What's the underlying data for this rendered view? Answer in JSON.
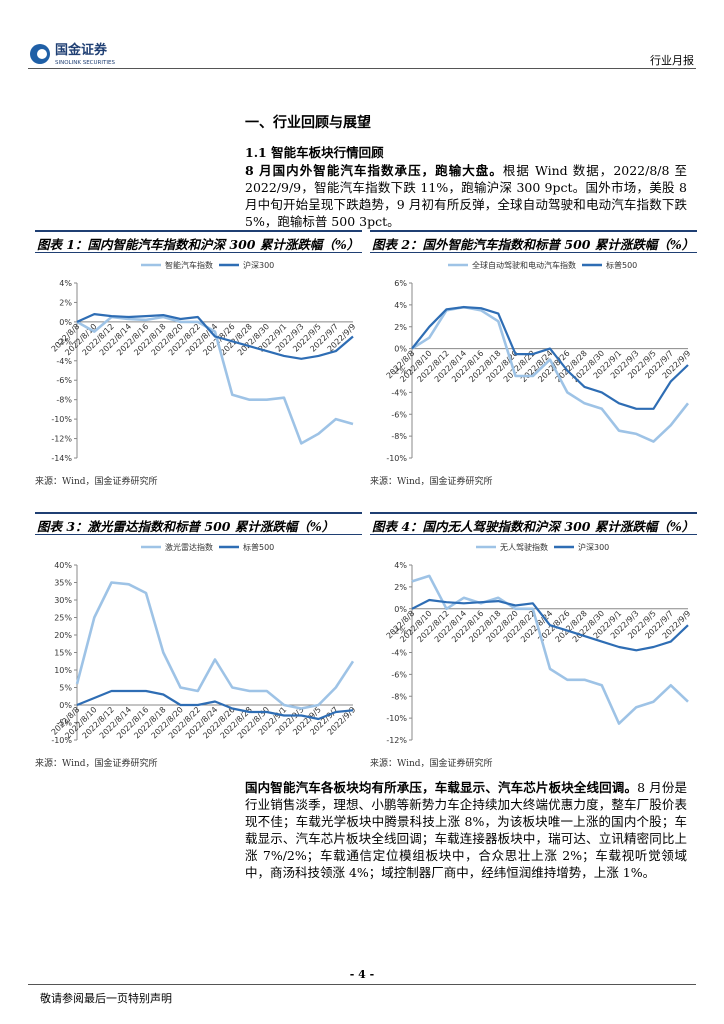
{
  "header": {
    "logo_cn": "国金证券",
    "logo_en": "SINOLINK SECURITIES",
    "report_type": "行业月报"
  },
  "section": "一、行业回顾与展望",
  "subsection": "1.1 智能车板块行情回顾",
  "paragraphs": [
    {
      "lead": "8 月国内外智能汽车指数承压，跑输大盘。",
      "text": "根据 Wind 数据，2022/8/8 至 2022/9/9，智能汽车指数下跌 11%，跑输沪深 300 9pct。国外市场，美股 8 月中旬开始呈现下跌趋势，9 月初有所反弹，全球自动驾驶和电动汽车指数下跌 5%，跑输标普 500 3pct。"
    },
    {
      "lead": "国内智能汽车各板块均有所承压，车载显示、汽车芯片板块全线回调。",
      "text": "8 月份是行业销售淡季，理想、小鹏等新势力车企持续加大终端优惠力度，整车厂股价表现不佳；车载光学板块中腾景科技上涨 8%，为该板块唯一上涨的国内个股；车载显示、汽车芯片板块全线回调；车载连接器板块中，瑞可达、立讯精密同比上涨 7%/2%；车载通信定位模组板块中，合众思壮上涨 2%；车载视听觉领域中，商汤科技领涨 4%；域控制器厂商中，经纬恒润维持增势，上涨 1%。"
    }
  ],
  "chart_data": [
    {
      "type": "line",
      "title": "图表 1：国内智能汽车指数和沪深 300 累计涨跌幅（%）",
      "source": "来源：Wind，国金证券研究所",
      "categories": [
        "2022/8/8",
        "2022/8/10",
        "2022/8/12",
        "2022/8/14",
        "2022/8/16",
        "2022/8/18",
        "2022/8/20",
        "2022/8/22",
        "2022/8/24",
        "2022/8/26",
        "2022/8/28",
        "2022/8/30",
        "2022/9/1",
        "2022/9/3",
        "2022/9/5",
        "2022/9/7",
        "2022/9/9"
      ],
      "series": [
        {
          "name": "智能汽车指数",
          "color": "#9ec3e6",
          "values": [
            0,
            -1,
            0.5,
            0.3,
            0.2,
            0.5,
            0,
            0,
            -1,
            -7.5,
            -8,
            -8,
            -7.8,
            -12.5,
            -11.5,
            -10,
            -10.5
          ]
        },
        {
          "name": "沪深300",
          "color": "#2e6db4",
          "values": [
            0,
            0.8,
            0.6,
            0.5,
            0.6,
            0.7,
            0.3,
            0.5,
            -1.5,
            -2,
            -2.5,
            -3,
            -3.5,
            -3.8,
            -3.5,
            -3,
            -1.5
          ]
        }
      ],
      "ylim": [
        -14,
        4
      ],
      "yticks": [
        {
          "value": 4,
          "label": "4%"
        },
        {
          "value": 2,
          "label": "2%"
        },
        {
          "value": 0,
          "label": "0%"
        },
        {
          "value": -2,
          "label": "-2%"
        },
        {
          "value": -4,
          "label": "-4%"
        },
        {
          "value": -6,
          "label": "-6%"
        },
        {
          "value": -8,
          "label": "-8%"
        },
        {
          "value": -10,
          "label": "-10%"
        },
        {
          "value": -12,
          "label": "-12%"
        },
        {
          "value": -14,
          "label": "-14%"
        }
      ]
    },
    {
      "type": "line",
      "title": "图表 2：国外智能汽车指数和标普 500 累计涨跌幅（%）",
      "source": "来源：Wind，国金证券研究所",
      "categories": [
        "2022/8/8",
        "2022/8/10",
        "2022/8/12",
        "2022/8/14",
        "2022/8/16",
        "2022/8/18",
        "2022/8/20",
        "2022/8/22",
        "2022/8/24",
        "2022/8/26",
        "2022/8/28",
        "2022/8/30",
        "2022/9/1",
        "2022/9/3",
        "2022/9/5",
        "2022/9/7",
        "2022/9/9"
      ],
      "series": [
        {
          "name": "全球自动驾驶和电动汽车指数",
          "color": "#9ec3e6",
          "values": [
            0,
            1,
            3.5,
            3.8,
            3.5,
            2.5,
            -2.5,
            -2.5,
            -1,
            -4,
            -5,
            -5.5,
            -7.5,
            -7.8,
            -8.5,
            -7,
            -5
          ]
        },
        {
          "name": "标普500",
          "color": "#2e6db4",
          "values": [
            0,
            2,
            3.6,
            3.8,
            3.7,
            3.2,
            -0.5,
            -0.5,
            0,
            -2,
            -3.5,
            -4,
            -5,
            -5.5,
            -5.5,
            -3,
            -1.5
          ]
        }
      ],
      "ylim": [
        -10,
        6
      ],
      "yticks": [
        {
          "value": 6,
          "label": "6%"
        },
        {
          "value": 4,
          "label": "4%"
        },
        {
          "value": 2,
          "label": "2%"
        },
        {
          "value": 0,
          "label": "0%"
        },
        {
          "value": -2,
          "label": "-2%"
        },
        {
          "value": -4,
          "label": "-4%"
        },
        {
          "value": -6,
          "label": "-6%"
        },
        {
          "value": -8,
          "label": "-8%"
        },
        {
          "value": -10,
          "label": "-10%"
        }
      ]
    },
    {
      "type": "line",
      "title": "图表 3：激光雷达指数和标普 500 累计涨跌幅（%）",
      "source": "来源：Wind，国金证券研究所",
      "categories": [
        "2022/8/8",
        "2022/8/10",
        "2022/8/12",
        "2022/8/14",
        "2022/8/16",
        "2022/8/18",
        "2022/8/20",
        "2022/8/22",
        "2022/8/24",
        "2022/8/26",
        "2022/8/28",
        "2022/8/30",
        "2022/9/1",
        "2022/9/3",
        "2022/9/5",
        "2022/9/7",
        "2022/9/9"
      ],
      "series": [
        {
          "name": "激光雷达指数",
          "color": "#9ec3e6",
          "values": [
            6,
            25,
            35,
            34.5,
            32,
            15,
            5,
            4,
            13,
            5,
            4,
            4,
            0,
            -1,
            0,
            5,
            12.5
          ]
        },
        {
          "name": "标普500",
          "color": "#2e6db4",
          "values": [
            0,
            2,
            4,
            4,
            4,
            3,
            0,
            0,
            1,
            -1,
            -2,
            -2,
            -3,
            -3,
            -4,
            -2,
            -1.5
          ]
        }
      ],
      "ylim": [
        -10,
        40
      ],
      "yticks": [
        {
          "value": 40,
          "label": "40%"
        },
        {
          "value": 35,
          "label": "35%"
        },
        {
          "value": 30,
          "label": "30%"
        },
        {
          "value": 25,
          "label": "25%"
        },
        {
          "value": 20,
          "label": "20%"
        },
        {
          "value": 15,
          "label": "15%"
        },
        {
          "value": 10,
          "label": "10%"
        },
        {
          "value": 5,
          "label": "5%"
        },
        {
          "value": 0,
          "label": "0%"
        },
        {
          "value": -5,
          "label": "-5%"
        },
        {
          "value": -10,
          "label": "-10%"
        }
      ]
    },
    {
      "type": "line",
      "title": "图表 4：国内无人驾驶指数和沪深 300 累计涨跌幅（%）",
      "source": "来源：Wind，国金证券研究所",
      "categories": [
        "2022/8/8",
        "2022/8/10",
        "2022/8/12",
        "2022/8/14",
        "2022/8/16",
        "2022/8/18",
        "2022/8/20",
        "2022/8/22",
        "2022/8/24",
        "2022/8/26",
        "2022/8/28",
        "2022/8/30",
        "2022/9/1",
        "2022/9/3",
        "2022/9/5",
        "2022/9/7",
        "2022/9/9"
      ],
      "series": [
        {
          "name": "无人驾驶指数",
          "color": "#9ec3e6",
          "values": [
            2.5,
            3,
            0,
            1,
            0.5,
            1,
            0,
            0,
            -5.5,
            -6.5,
            -6.5,
            -7,
            -10.5,
            -9,
            -8.5,
            -7,
            -8.5
          ]
        },
        {
          "name": "沪深300",
          "color": "#2e6db4",
          "values": [
            0,
            0.8,
            0.6,
            0.5,
            0.6,
            0.7,
            0.3,
            0.5,
            -1.5,
            -2,
            -2.5,
            -3,
            -3.5,
            -3.8,
            -3.5,
            -3,
            -1.5
          ]
        }
      ],
      "ylim": [
        -12,
        4
      ],
      "yticks": [
        {
          "value": 4,
          "label": "4%"
        },
        {
          "value": 2,
          "label": "2%"
        },
        {
          "value": 0,
          "label": "0%"
        },
        {
          "value": -2,
          "label": "-2%"
        },
        {
          "value": -4,
          "label": "-4%"
        },
        {
          "value": -6,
          "label": "-6%"
        },
        {
          "value": -8,
          "label": "-8%"
        },
        {
          "value": -10,
          "label": "-10%"
        },
        {
          "value": -12,
          "label": "-12%"
        }
      ]
    }
  ],
  "footer": {
    "page_number": "- 4 -",
    "disclaimer": "敬请参阅最后一页特别声明"
  }
}
